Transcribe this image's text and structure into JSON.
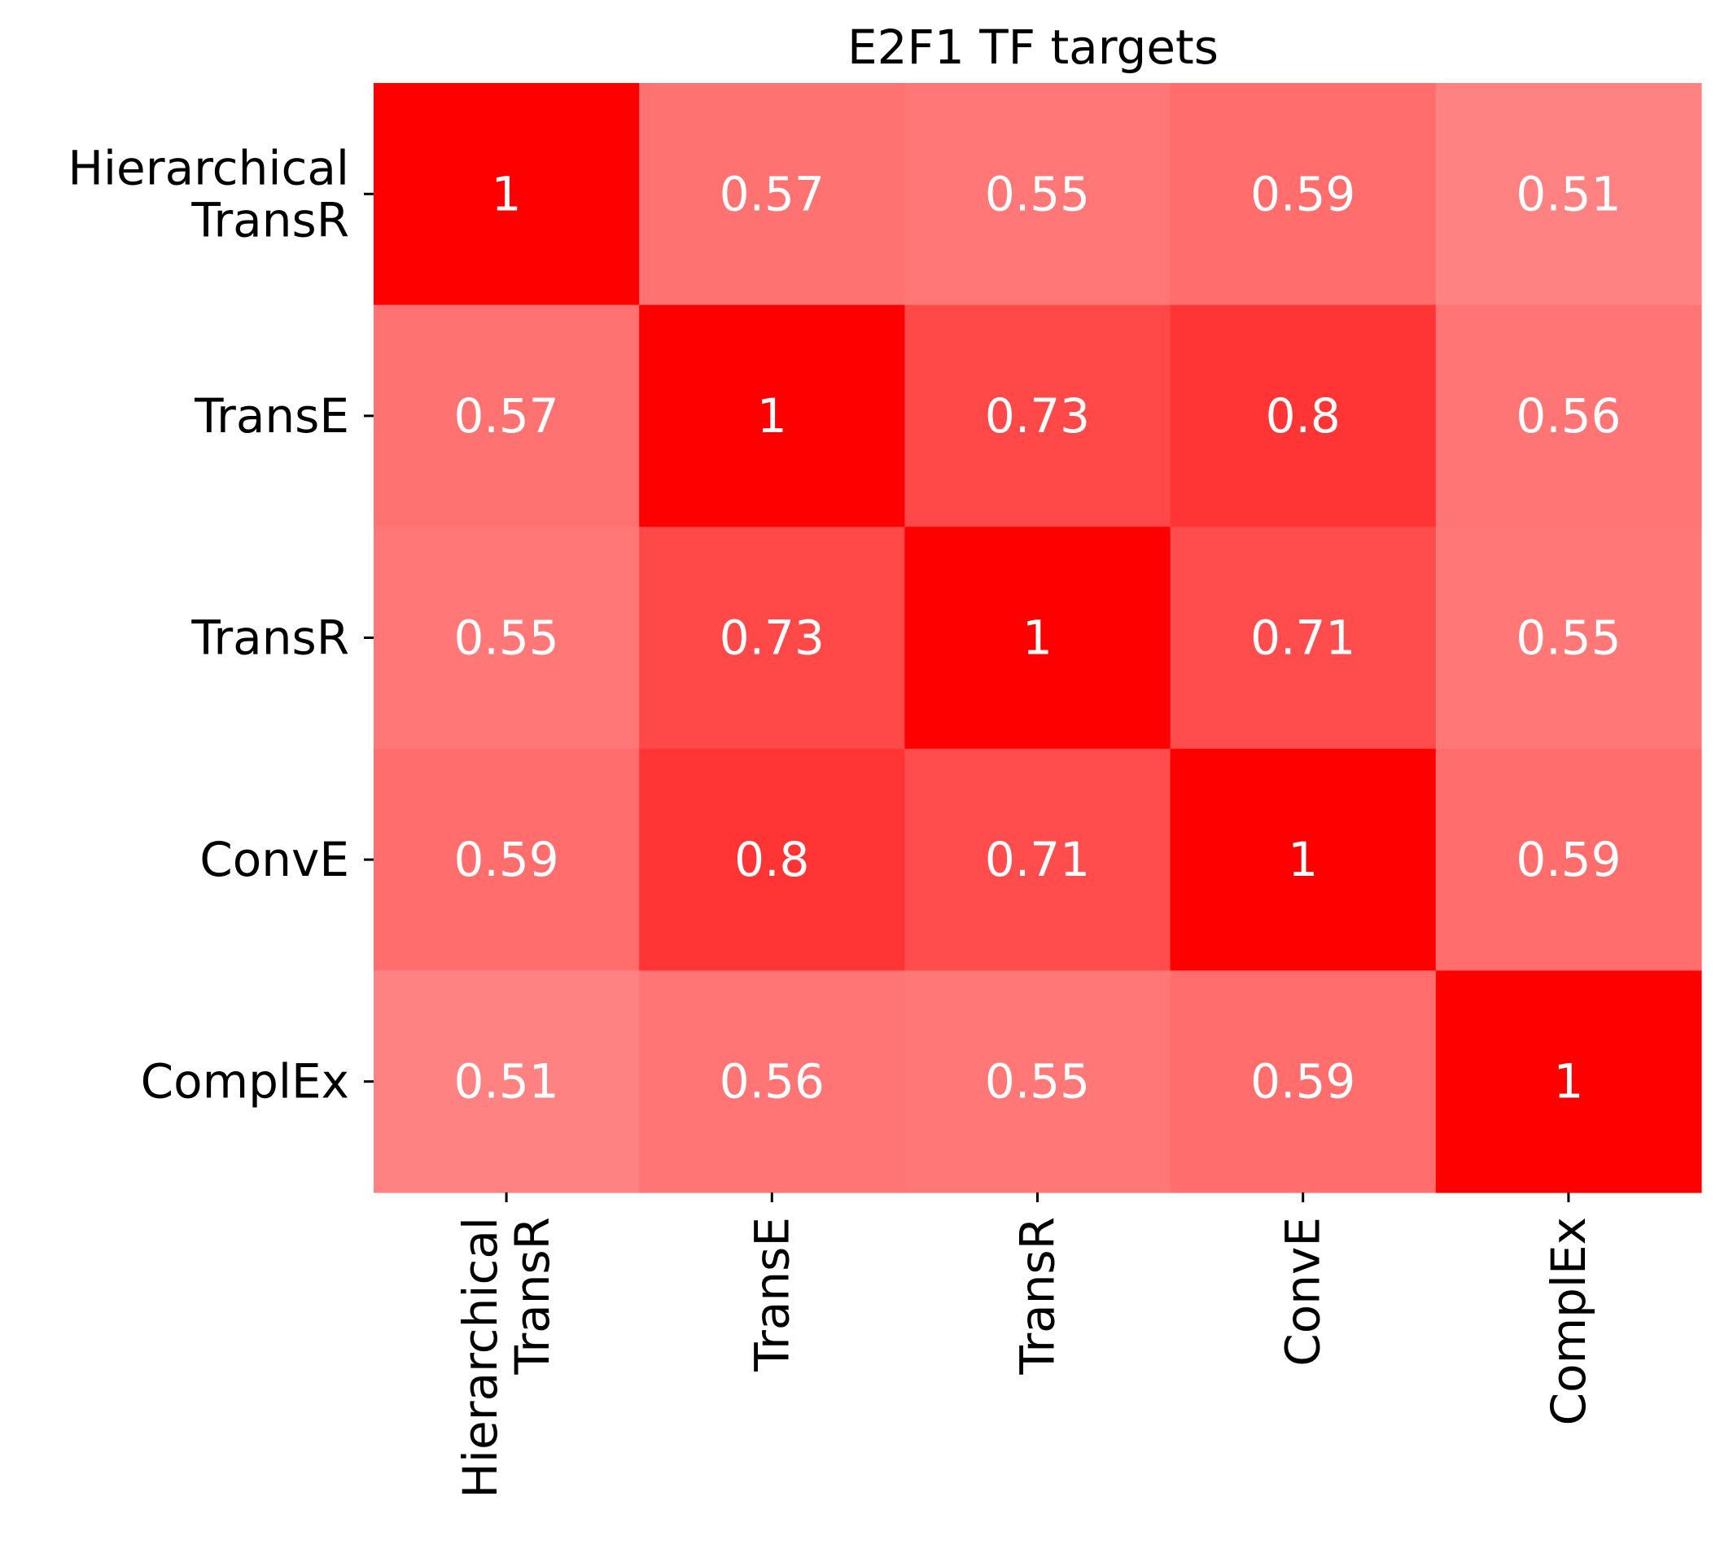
{
  "chart_data": {
    "type": "heatmap",
    "title": "E2F1 TF targets",
    "xlabel": "",
    "ylabel": "",
    "x_categories": [
      [
        "Hierarchical",
        "TransR"
      ],
      [
        "TransE"
      ],
      [
        "TransR"
      ],
      [
        "ConvE"
      ],
      [
        "ComplEx"
      ]
    ],
    "y_categories": [
      [
        "Hierarchical",
        "TransR"
      ],
      [
        "TransE"
      ],
      [
        "TransR"
      ],
      [
        "ConvE"
      ],
      [
        "ComplEx"
      ]
    ],
    "values": [
      [
        1,
        0.57,
        0.55,
        0.59,
        0.51
      ],
      [
        0.57,
        1,
        0.73,
        0.8,
        0.56
      ],
      [
        0.55,
        0.73,
        1,
        0.71,
        0.55
      ],
      [
        0.59,
        0.8,
        0.71,
        1,
        0.59
      ],
      [
        0.51,
        0.56,
        0.55,
        0.59,
        1
      ]
    ],
    "annotations": [
      [
        "1",
        "0.57",
        "0.55",
        "0.59",
        "0.51"
      ],
      [
        "0.57",
        "1",
        "0.73",
        "0.8",
        "0.56"
      ],
      [
        "0.55",
        "0.73",
        "1",
        "0.71",
        "0.55"
      ],
      [
        "0.59",
        "0.8",
        "0.71",
        "1",
        "0.59"
      ],
      [
        "0.51",
        "0.56",
        "0.55",
        "0.59",
        "1"
      ]
    ],
    "colormap": {
      "low_color": "#ffffff",
      "high_color": "#ff0000"
    },
    "annotation_color": "#ffffff",
    "colorbar": false,
    "grid": false
  }
}
